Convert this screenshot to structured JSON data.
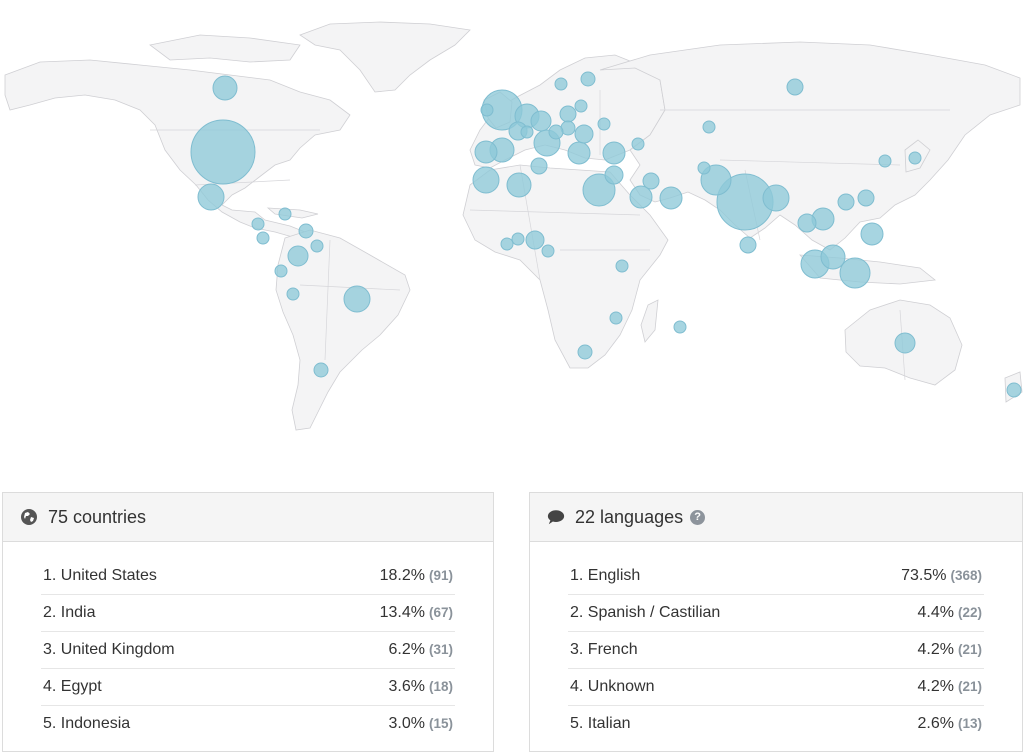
{
  "map": {
    "bubble_color": "#8ec9d9",
    "land_color": "#f4f4f5",
    "border_color": "#cfcfd3"
  },
  "countries_panel": {
    "icon": "globe-icon",
    "title": "75 countries",
    "rows": [
      {
        "label": "1. United States",
        "pct": "18.2%",
        "count": "(91)"
      },
      {
        "label": "2. India",
        "pct": "13.4%",
        "count": "(67)"
      },
      {
        "label": "3. United Kingdom",
        "pct": "6.2%",
        "count": "(31)"
      },
      {
        "label": "4. Egypt",
        "pct": "3.6%",
        "count": "(18)"
      },
      {
        "label": "5. Indonesia",
        "pct": "3.0%",
        "count": "(15)"
      }
    ]
  },
  "languages_panel": {
    "icon": "speech-bubble-icon",
    "help_icon": "question-circle-icon",
    "help_glyph": "?",
    "title": "22 languages",
    "rows": [
      {
        "label": "1. English",
        "pct": "73.5%",
        "count": "(368)"
      },
      {
        "label": "2. Spanish / Castilian",
        "pct": "4.4%",
        "count": "(22)"
      },
      {
        "label": "3. French",
        "pct": "4.2%",
        "count": "(21)"
      },
      {
        "label": "4. Unknown",
        "pct": "4.2%",
        "count": "(21)"
      },
      {
        "label": "5. Italian",
        "pct": "2.6%",
        "count": "(13)"
      }
    ]
  }
}
